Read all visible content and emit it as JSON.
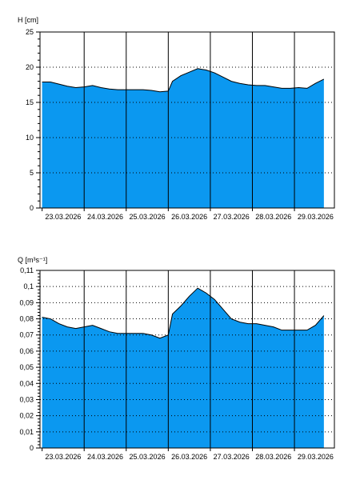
{
  "chart_data": [
    {
      "type": "area",
      "ylabel": "H [cm]",
      "ylim": [
        0,
        25
      ],
      "y_ticks": [
        "0",
        "5",
        "10",
        "15",
        "20",
        "25"
      ],
      "categories": [
        "23.03.2026",
        "24.03.2026",
        "25.03.2026",
        "26.03.2026",
        "27.03.2026",
        "28.03.2026",
        "29.03.2026"
      ],
      "x_range": [
        -0.05,
        6.95
      ],
      "grid": true,
      "fill_color": "#0b98f0",
      "line_color": "#000000",
      "series": [
        {
          "x": [
            0.0,
            0.2,
            0.4,
            0.6,
            0.8,
            1.0,
            1.2,
            1.4,
            1.6,
            1.8,
            2.0,
            2.2,
            2.4,
            2.6,
            2.8,
            3.0,
            3.1,
            3.3,
            3.5,
            3.7,
            3.9,
            4.1,
            4.3,
            4.5,
            4.7,
            4.9,
            5.1,
            5.3,
            5.5,
            5.7,
            5.9,
            6.1,
            6.3,
            6.5,
            6.7
          ],
          "values": [
            17.9,
            17.9,
            17.6,
            17.3,
            17.1,
            17.2,
            17.4,
            17.1,
            16.9,
            16.8,
            16.8,
            16.8,
            16.8,
            16.7,
            16.5,
            16.6,
            18.0,
            18.8,
            19.3,
            19.8,
            19.6,
            19.2,
            18.6,
            18.0,
            17.7,
            17.5,
            17.4,
            17.4,
            17.2,
            17.0,
            17.0,
            17.1,
            17.0,
            17.7,
            18.3
          ]
        }
      ]
    },
    {
      "type": "area",
      "ylabel": "Q [m³s⁻¹]",
      "ylim": [
        0,
        0.11
      ],
      "y_ticks": [
        "0",
        "0,01",
        "0,02",
        "0,03",
        "0,04",
        "0,05",
        "0,06",
        "0,07",
        "0,08",
        "0,09",
        "0,1",
        "0,11"
      ],
      "categories": [
        "23.03.2026",
        "24.03.2026",
        "25.03.2026",
        "26.03.2026",
        "27.03.2026",
        "28.03.2026",
        "29.03.2026"
      ],
      "x_range": [
        -0.05,
        6.95
      ],
      "grid": true,
      "fill_color": "#0b98f0",
      "line_color": "#000000",
      "series": [
        {
          "x": [
            0.0,
            0.2,
            0.4,
            0.6,
            0.8,
            1.0,
            1.2,
            1.4,
            1.6,
            1.8,
            2.0,
            2.2,
            2.4,
            2.6,
            2.8,
            3.0,
            3.1,
            3.3,
            3.5,
            3.7,
            3.9,
            4.1,
            4.3,
            4.5,
            4.7,
            4.9,
            5.1,
            5.3,
            5.5,
            5.7,
            5.9,
            6.1,
            6.3,
            6.5,
            6.7
          ],
          "values": [
            0.081,
            0.08,
            0.077,
            0.075,
            0.074,
            0.075,
            0.076,
            0.074,
            0.072,
            0.071,
            0.071,
            0.071,
            0.071,
            0.07,
            0.068,
            0.07,
            0.083,
            0.088,
            0.094,
            0.099,
            0.096,
            0.092,
            0.086,
            0.08,
            0.078,
            0.077,
            0.077,
            0.076,
            0.075,
            0.073,
            0.073,
            0.073,
            0.073,
            0.076,
            0.082
          ]
        }
      ]
    }
  ]
}
